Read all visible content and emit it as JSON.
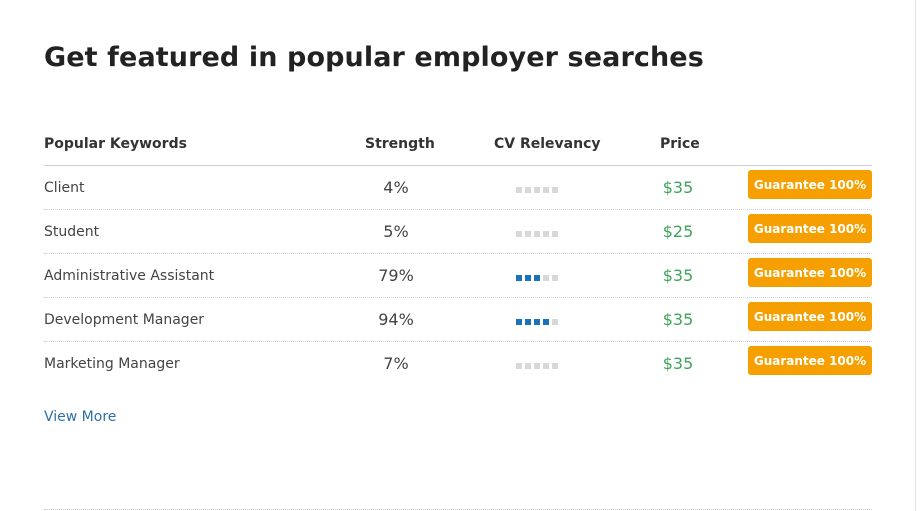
{
  "title": "Get featured in popular employer searches",
  "table": {
    "headers": {
      "keyword": "Popular Keywords",
      "strength": "Strength",
      "relevancy": "CV Relevancy",
      "price": "Price"
    },
    "rows": [
      {
        "keyword": "Client",
        "strength": "4%",
        "relevancy": 0,
        "price": "$35",
        "button": "Guarantee 100%"
      },
      {
        "keyword": "Student",
        "strength": "5%",
        "relevancy": 0,
        "price": "$25",
        "button": "Guarantee 100%"
      },
      {
        "keyword": "Administrative Assistant",
        "strength": "79%",
        "relevancy": 3,
        "price": "$35",
        "button": "Guarantee 100%"
      },
      {
        "keyword": "Development Manager",
        "strength": "94%",
        "relevancy": 4,
        "price": "$35",
        "button": "Guarantee 100%"
      },
      {
        "keyword": "Marketing Manager",
        "strength": "7%",
        "relevancy": 0,
        "price": "$35",
        "button": "Guarantee 100%"
      }
    ],
    "relevancy_scale": 5
  },
  "view_more": "View More",
  "colors": {
    "accent_button": "#f5a000",
    "price_green": "#3fa45b",
    "relevancy_on": "#1a73b8",
    "relevancy_off": "#d8d8d8",
    "link": "#2f6fa7"
  }
}
